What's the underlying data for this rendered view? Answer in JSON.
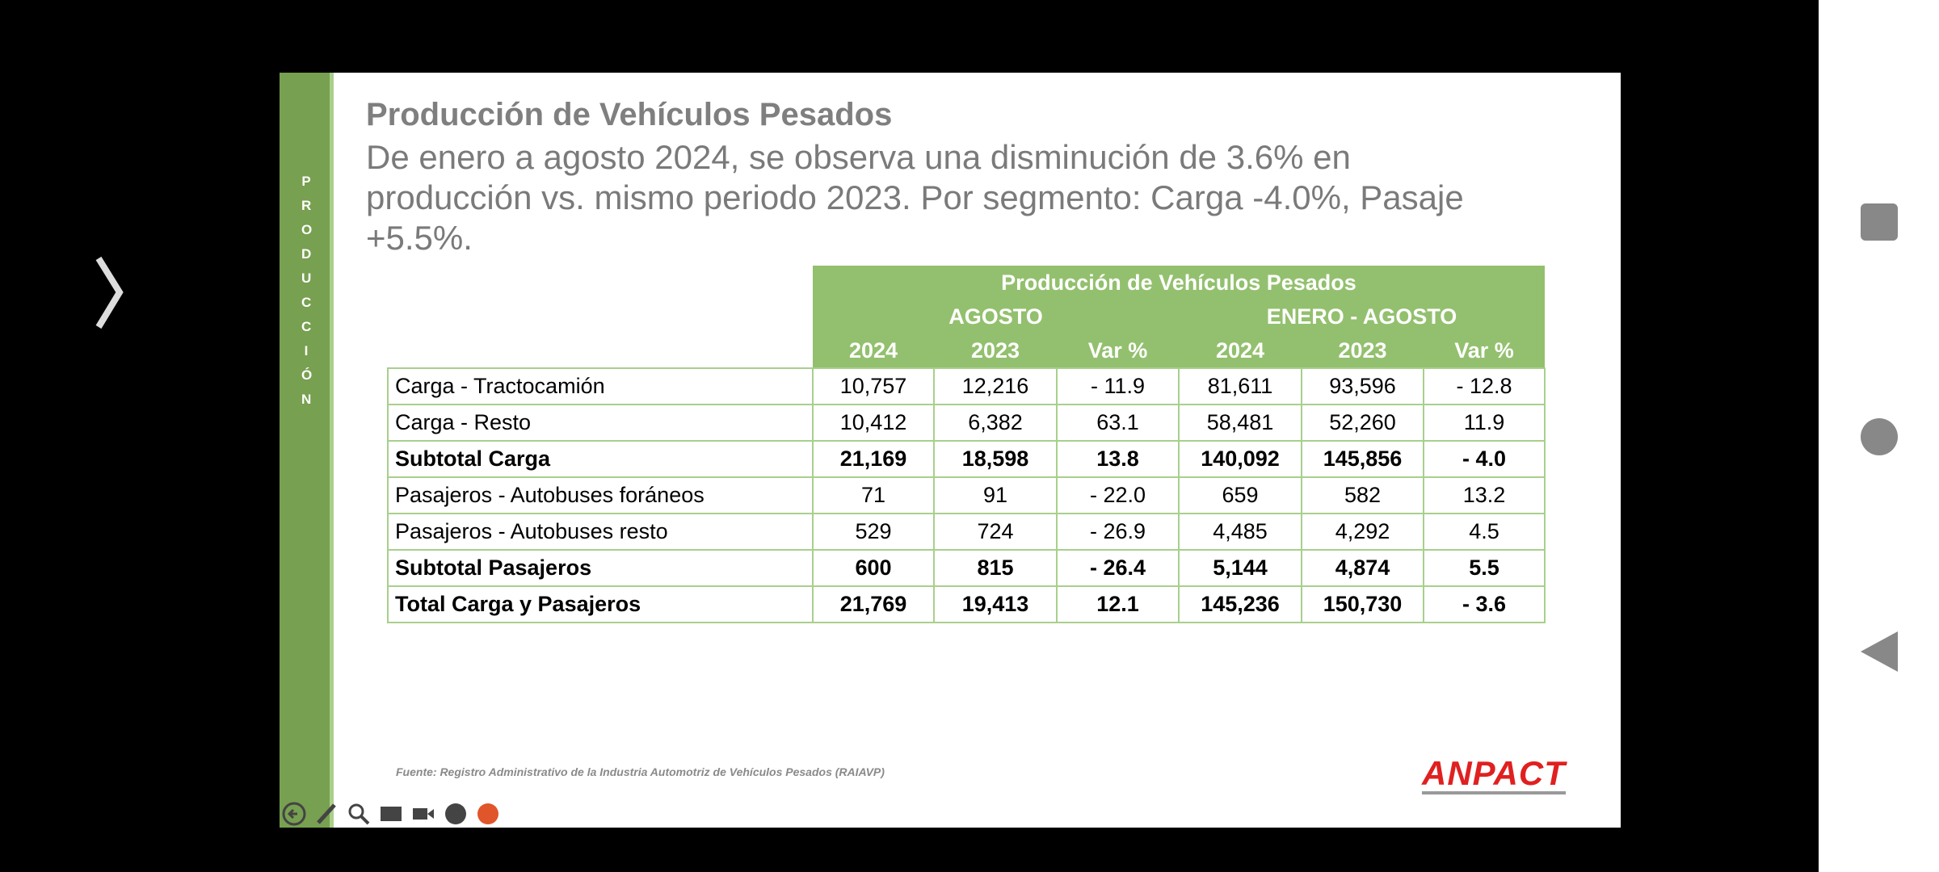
{
  "header": {
    "title": "Producción de Vehículos Pesados",
    "subtitle_lines": [
      "De enero a agosto 2024, se observa una disminución de 3.6% en",
      "producción vs. mismo periodo 2023. Por segmento: Carga -4.0%, Pasaje",
      "+5.5%."
    ]
  },
  "sidebar_label": "PRODUCCIÓN",
  "table": {
    "title": "Producción de Vehículos Pesados",
    "groups": [
      "AGOSTO",
      "ENERO - AGOSTO"
    ],
    "columns": [
      "2024",
      "2023",
      "Var %",
      "2024",
      "2023",
      "Var %"
    ],
    "rows": [
      {
        "label": "Carga - Tractocamión",
        "bold": false,
        "values": [
          "10,757",
          "12,216",
          "- 11.9",
          "81,611",
          "93,596",
          "- 12.8"
        ]
      },
      {
        "label": "Carga - Resto",
        "bold": false,
        "values": [
          "10,412",
          "6,382",
          "63.1",
          "58,481",
          "52,260",
          "11.9"
        ]
      },
      {
        "label": "Subtotal Carga",
        "bold": true,
        "values": [
          "21,169",
          "18,598",
          "13.8",
          "140,092",
          "145,856",
          "- 4.0"
        ]
      },
      {
        "label": "Pasajeros - Autobuses foráneos",
        "bold": false,
        "values": [
          "71",
          "91",
          "- 22.0",
          "659",
          "582",
          "13.2"
        ]
      },
      {
        "label": "Pasajeros - Autobuses resto",
        "bold": false,
        "values": [
          "529",
          "724",
          "- 26.9",
          "4,485",
          "4,292",
          "4.5"
        ]
      },
      {
        "label": "Subtotal Pasajeros",
        "bold": true,
        "values": [
          "600",
          "815",
          "- 26.4",
          "5,144",
          "4,874",
          "5.5"
        ]
      },
      {
        "label": "Total Carga y Pasajeros",
        "bold": true,
        "values": [
          "21,769",
          "19,413",
          "12.1",
          "145,236",
          "150,730",
          "- 3.6"
        ]
      }
    ]
  },
  "footer": {
    "source": "Fuente: Registro Administrativo de la Industria Automotriz de Vehículos Pesados (RAIAVP)",
    "logo": "ANPACT"
  }
}
